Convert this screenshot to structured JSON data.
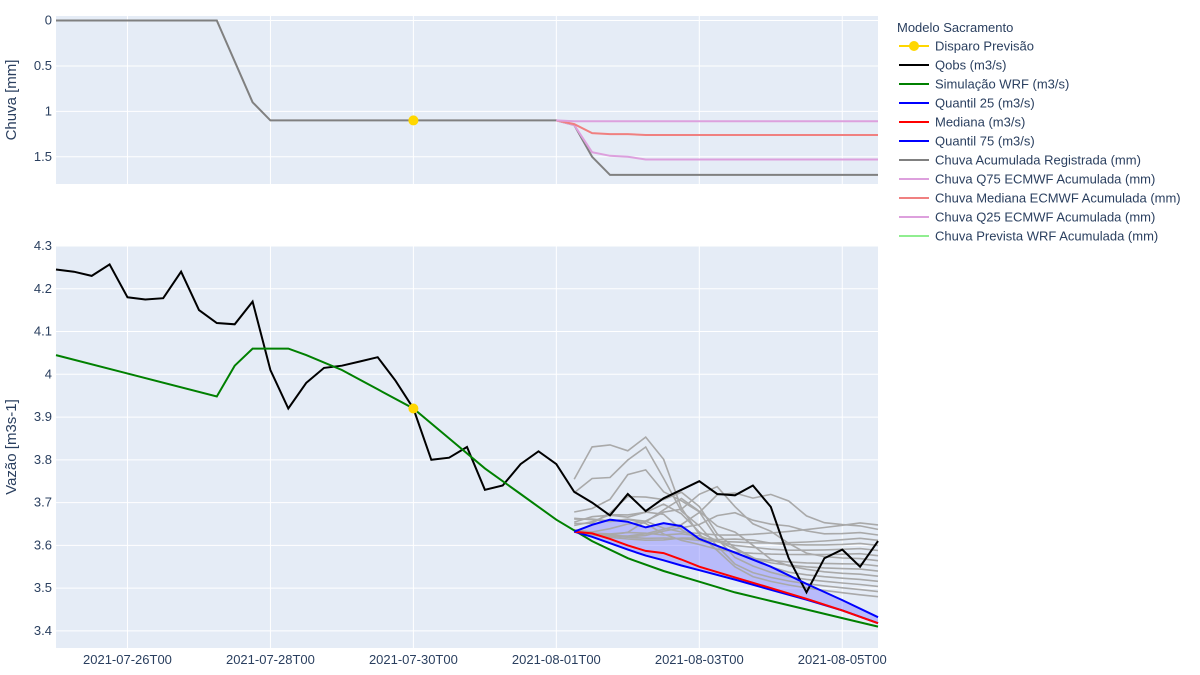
{
  "chart_data": [
    {
      "type": "line",
      "panel": "top",
      "ylabel": "Chuva [mm]",
      "y_reversed": true,
      "ylim": [
        1.8,
        -0.05
      ],
      "yticks": [
        0,
        0.5,
        1,
        1.5
      ],
      "ytick_labels": [
        "0",
        "0.5",
        "1",
        "1.5"
      ],
      "grid": true,
      "marker": {
        "name": "Disparo Previsão",
        "x": "2021-07-30T00",
        "y": 1.1
      },
      "series": [
        {
          "name": "Chuva Acumulada Registrada (mm)",
          "color": "#808080",
          "x": [
            "2021-07-25T00",
            "2021-07-27T06",
            "2021-07-27T18",
            "2021-07-28T00",
            "2021-08-01T00",
            "2021-08-01T06",
            "2021-08-01T12",
            "2021-08-01T18",
            "2021-08-05T12"
          ],
          "y": [
            0,
            0,
            0.9,
            1.1,
            1.1,
            1.15,
            1.5,
            1.7,
            1.7
          ]
        },
        {
          "name": "Chuva Q75 ECMWF Acumulada (mm)",
          "color": "#dda0dd",
          "x": [
            "2021-08-01T00",
            "2021-08-01T06",
            "2021-08-01T12",
            "2021-08-01T18",
            "2021-08-02T00",
            "2021-08-02T06",
            "2021-08-05T12"
          ],
          "y": [
            1.1,
            1.15,
            1.45,
            1.49,
            1.5,
            1.53,
            1.53
          ]
        },
        {
          "name": "Chuva Mediana ECMWF Acumulada (mm)",
          "color": "#f08080",
          "x": [
            "2021-08-01T00",
            "2021-08-01T06",
            "2021-08-01T12",
            "2021-08-01T18",
            "2021-08-02T00",
            "2021-08-02T06",
            "2021-08-05T12"
          ],
          "y": [
            1.1,
            1.14,
            1.24,
            1.25,
            1.25,
            1.26,
            1.26
          ]
        },
        {
          "name": "Chuva Q25 ECMWF Acumulada (mm)",
          "color": "#dda0dd",
          "x": [
            "2021-08-01T00",
            "2021-08-01T06",
            "2021-08-05T12"
          ],
          "y": [
            1.1,
            1.11,
            1.11
          ]
        }
      ]
    },
    {
      "type": "line",
      "panel": "bottom",
      "ylabel": "Vazão [m3s-1]",
      "ylim": [
        3.36,
        4.3
      ],
      "yticks": [
        3.4,
        3.5,
        3.6,
        3.7,
        3.8,
        3.9,
        4,
        4.1,
        4.2,
        4.3
      ],
      "ytick_labels": [
        "3.4",
        "3.5",
        "3.6",
        "3.7",
        "3.8",
        "3.9",
        "4",
        "4.1",
        "4.2",
        "4.3"
      ],
      "grid": true,
      "marker": {
        "name": "Disparo Previsão",
        "x": "2021-07-30T00",
        "y": 3.92
      },
      "series": [
        {
          "name": "Qobs (m3/s)",
          "color": "#000000",
          "x": [
            "2021-07-25T00",
            "2021-07-25T06",
            "2021-07-25T12",
            "2021-07-25T18",
            "2021-07-26T00",
            "2021-07-26T06",
            "2021-07-26T12",
            "2021-07-26T18",
            "2021-07-27T00",
            "2021-07-27T06",
            "2021-07-27T12",
            "2021-07-27T18",
            "2021-07-28T00",
            "2021-07-28T06",
            "2021-07-28T12",
            "2021-07-28T18",
            "2021-07-29T00",
            "2021-07-29T06",
            "2021-07-29T12",
            "2021-07-29T18",
            "2021-07-30T00",
            "2021-07-30T06",
            "2021-07-30T12",
            "2021-07-30T18",
            "2021-07-31T00",
            "2021-07-31T06",
            "2021-07-31T12",
            "2021-07-31T18",
            "2021-08-01T00",
            "2021-08-01T06",
            "2021-08-01T12",
            "2021-08-01T18",
            "2021-08-02T00",
            "2021-08-02T06",
            "2021-08-02T12",
            "2021-08-02T18",
            "2021-08-03T00",
            "2021-08-03T06",
            "2021-08-03T12",
            "2021-08-03T18",
            "2021-08-04T00",
            "2021-08-04T06",
            "2021-08-04T12",
            "2021-08-04T18",
            "2021-08-05T00",
            "2021-08-05T06",
            "2021-08-05T12"
          ],
          "y": [
            4.245,
            4.24,
            4.23,
            4.257,
            4.18,
            4.175,
            4.178,
            4.24,
            4.15,
            4.12,
            4.117,
            4.17,
            4.01,
            3.92,
            3.98,
            4.015,
            4.02,
            4.03,
            4.04,
            3.985,
            3.92,
            3.8,
            3.805,
            3.83,
            3.73,
            3.74,
            3.79,
            3.82,
            3.79,
            3.725,
            3.7,
            3.67,
            3.72,
            3.68,
            3.71,
            3.73,
            3.75,
            3.72,
            3.717,
            3.74,
            3.69,
            3.57,
            3.49,
            3.57,
            3.59,
            3.55,
            3.61
          ]
        },
        {
          "name": "Simulação WRF (m3/s)",
          "color": "#008000",
          "x": [
            "2021-07-25T00",
            "2021-07-27T06",
            "2021-07-27T12",
            "2021-07-27T18",
            "2021-07-28T06",
            "2021-07-28T12",
            "2021-07-29T00",
            "2021-07-29T12",
            "2021-07-30T00",
            "2021-07-30T12",
            "2021-07-31T00",
            "2021-07-31T12",
            "2021-08-01T00",
            "2021-08-01T12",
            "2021-08-02T00",
            "2021-08-02T12",
            "2021-08-03T00",
            "2021-08-03T12",
            "2021-08-04T00",
            "2021-08-04T12",
            "2021-08-05T00",
            "2021-08-05T12"
          ],
          "y": [
            4.045,
            3.948,
            4.02,
            4.06,
            4.06,
            4.045,
            4.01,
            3.965,
            3.92,
            3.85,
            3.78,
            3.72,
            3.66,
            3.61,
            3.57,
            3.54,
            3.515,
            3.49,
            3.47,
            3.45,
            3.43,
            3.41
          ]
        },
        {
          "name": "Quantil 25 (m3/s)",
          "color": "#0000ff",
          "x": [
            "2021-08-01T06",
            "2021-08-01T12",
            "2021-08-01T18",
            "2021-08-02T00",
            "2021-08-02T06",
            "2021-08-02T12",
            "2021-08-02T18",
            "2021-08-03T00",
            "2021-08-03T12",
            "2021-08-04T00",
            "2021-08-04T12",
            "2021-08-05T00",
            "2021-08-05T12"
          ],
          "y": [
            3.632,
            3.62,
            3.605,
            3.59,
            3.576,
            3.565,
            3.553,
            3.542,
            3.52,
            3.496,
            3.473,
            3.448,
            3.418
          ]
        },
        {
          "name": "Mediana (m3/s)",
          "color": "#ff0000",
          "x": [
            "2021-08-01T06",
            "2021-08-01T12",
            "2021-08-01T18",
            "2021-08-02T00",
            "2021-08-02T06",
            "2021-08-02T12",
            "2021-08-02T18",
            "2021-08-03T00",
            "2021-08-03T12",
            "2021-08-04T00",
            "2021-08-04T12",
            "2021-08-05T00",
            "2021-08-05T12"
          ],
          "y": [
            3.632,
            3.628,
            3.615,
            3.6,
            3.587,
            3.582,
            3.567,
            3.55,
            3.525,
            3.5,
            3.475,
            3.448,
            3.418
          ]
        },
        {
          "name": "Quantil 75 (m3/s)",
          "color": "#0000ff",
          "x": [
            "2021-08-01T06",
            "2021-08-01T12",
            "2021-08-01T18",
            "2021-08-02T00",
            "2021-08-02T06",
            "2021-08-02T12",
            "2021-08-02T18",
            "2021-08-03T00",
            "2021-08-03T12",
            "2021-08-04T00",
            "2021-08-04T12",
            "2021-08-05T00",
            "2021-08-05T12"
          ],
          "y": [
            3.632,
            3.648,
            3.66,
            3.655,
            3.642,
            3.652,
            3.645,
            3.615,
            3.583,
            3.55,
            3.51,
            3.472,
            3.432
          ]
        }
      ]
    }
  ],
  "x_axis": {
    "start": "2021-07-25T00",
    "end": "2021-08-05T12",
    "ticks": [
      "2021-07-26T00",
      "2021-07-28T00",
      "2021-07-30T00",
      "2021-08-01T00",
      "2021-08-03T00",
      "2021-08-05T00"
    ]
  },
  "legend": {
    "title": "Modelo Sacramento",
    "position": "right",
    "items": [
      {
        "label": "Disparo Previsão",
        "color": "#ffd700",
        "marker": true
      },
      {
        "label": "Qobs (m3/s)",
        "color": "#000000"
      },
      {
        "label": "Simulação WRF (m3/s)",
        "color": "#008000"
      },
      {
        "label": "Quantil 25 (m3/s)",
        "color": "#0000ff"
      },
      {
        "label": "Mediana (m3/s)",
        "color": "#ff0000"
      },
      {
        "label": "Quantil 75 (m3/s)",
        "color": "#0000ff"
      },
      {
        "label": "Chuva Acumulada Registrada (mm)",
        "color": "#808080"
      },
      {
        "label": "Chuva Q75 ECMWF Acumulada (mm)",
        "color": "#dda0dd"
      },
      {
        "label": "Chuva Mediana ECMWF Acumulada (mm)",
        "color": "#f08080"
      },
      {
        "label": "Chuva Q25 ECMWF Acumulada (mm)",
        "color": "#dda0dd"
      },
      {
        "label": "Chuva Prevista WRF Acumulada (mm)",
        "color": "#90ee90"
      }
    ]
  },
  "colors": {
    "plot_background": "#e5ecf6",
    "grid": "#ffffff",
    "text": "#2a3f5f",
    "ensemble": "#a9a9a9",
    "ensemble_band": "#8080ff",
    "trigger_marker": "#ffd700"
  }
}
